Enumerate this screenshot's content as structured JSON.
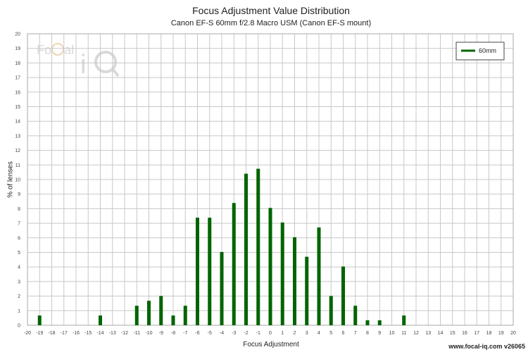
{
  "chart_data": {
    "type": "bar",
    "title": "Focus Adjustment Value Distribution",
    "subtitle": "Canon EF-S 60mm f/2.8 Macro USM (Canon EF-S mount)",
    "xlabel": "Focus Adjustment",
    "ylabel": "% of lenses",
    "xlim": [
      -20,
      20
    ],
    "ylim": [
      0,
      20
    ],
    "grid": true,
    "legend_position": "top-right",
    "series": [
      {
        "name": "60mm",
        "color": "#006400",
        "points": [
          {
            "x": -19,
            "y": 0.67
          },
          {
            "x": -14,
            "y": 0.67
          },
          {
            "x": -11,
            "y": 1.34
          },
          {
            "x": -10,
            "y": 1.68
          },
          {
            "x": -9,
            "y": 2.01
          },
          {
            "x": -8,
            "y": 0.67
          },
          {
            "x": -7,
            "y": 1.34
          },
          {
            "x": -6,
            "y": 7.38
          },
          {
            "x": -5,
            "y": 7.38
          },
          {
            "x": -4,
            "y": 5.03
          },
          {
            "x": -3,
            "y": 8.39
          },
          {
            "x": -2,
            "y": 10.4
          },
          {
            "x": -1,
            "y": 10.74
          },
          {
            "x": 0,
            "y": 8.05
          },
          {
            "x": 1,
            "y": 7.05
          },
          {
            "x": 2,
            "y": 6.04
          },
          {
            "x": 3,
            "y": 4.7
          },
          {
            "x": 4,
            "y": 6.71
          },
          {
            "x": 5,
            "y": 2.01
          },
          {
            "x": 6,
            "y": 4.03
          },
          {
            "x": 7,
            "y": 1.34
          },
          {
            "x": 8,
            "y": 0.34
          },
          {
            "x": 9,
            "y": 0.34
          },
          {
            "x": 11,
            "y": 0.67
          }
        ]
      }
    ]
  },
  "watermark": "www.focal-iq.com  v26065",
  "logo_text": "FoCal iQ"
}
